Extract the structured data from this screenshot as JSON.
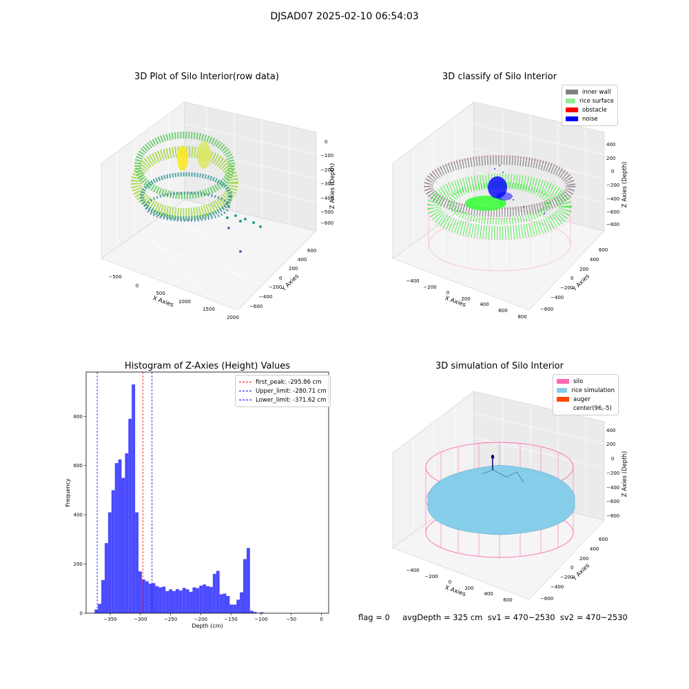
{
  "suptitle": "DJSAD07 2025-02-10 06:54:03",
  "footer": "flag = 0     avgDepth = 325 cm  sv1 = 470~2530  sv2 = 470~2530",
  "colors": {
    "wall": "#808080",
    "rice": "#90ee90",
    "obstacle": "#ff0000",
    "noise": "#0000ff",
    "silo": "#ff69b4",
    "rice_sim": "#87ceeb",
    "auger": "#ff4500",
    "hist_bar": "#4b4bff",
    "peak_line": "#ff0000",
    "limit_line": "#0000ff"
  },
  "plot1": {
    "title": "3D Plot of Silo Interior(row data)",
    "xlabel": "X Axies",
    "ylabel": "Y Axies",
    "zlabel": "Z Axies (Depth)",
    "xticks": [
      "−500",
      "0",
      "500",
      "1000",
      "1500",
      "2000"
    ],
    "yticks": [
      "600",
      "400",
      "200",
      "0",
      "−200",
      "−400",
      "−600"
    ],
    "zticks": [
      "0",
      "−100",
      "−200",
      "−300",
      "−400",
      "−500",
      "−600"
    ]
  },
  "plot2": {
    "title": "3D classify of Silo Interior",
    "xlabel": "X Axies",
    "ylabel": "Y Axies",
    "zlabel": "Z Axies (Depth)",
    "xticks": [
      "−400",
      "−200",
      "0",
      "200",
      "400",
      "600",
      "800"
    ],
    "yticks": [
      "600",
      "400",
      "200",
      "0",
      "−200",
      "−400",
      "−600"
    ],
    "zticks": [
      "400",
      "200",
      "0",
      "−200",
      "−400",
      "−600",
      "−800"
    ],
    "legend": [
      {
        "label": "inner wall",
        "color": "#808080"
      },
      {
        "label": "rice surface",
        "color": "#90ee90"
      },
      {
        "label": "obstacle",
        "color": "#ff0000"
      },
      {
        "label": "noise",
        "color": "#0000ff"
      }
    ]
  },
  "plot4": {
    "title": "3D simulation of Silo Interior",
    "xlabel": "X Axies",
    "ylabel": "Y Axies",
    "zlabel": "Z Axies (Depth)",
    "xticks": [
      "−400",
      "−200",
      "0",
      "200",
      "400",
      "600"
    ],
    "yticks": [
      "600",
      "400",
      "200",
      "0",
      "−200",
      "−400",
      "−600"
    ],
    "zticks": [
      "400",
      "200",
      "0",
      "−200",
      "−400",
      "−600",
      "−800"
    ],
    "legend": [
      {
        "label": "silo",
        "color": "#ff69b4"
      },
      {
        "label": "rice simulation",
        "color": "#87ceeb"
      },
      {
        "label": "auger",
        "color": "#ff4500"
      },
      {
        "label": "center(96,-5)",
        "color": "#ffffff"
      }
    ]
  },
  "chart_data": {
    "type": "bar",
    "title": "Histogram of Z-Axies (Height) Values",
    "xlabel": "Depth (cm)",
    "ylabel": "Frequency",
    "xlim": [
      -390,
      12
    ],
    "ylim": [
      0,
      980
    ],
    "xticks": [
      -350,
      -300,
      -250,
      -200,
      -150,
      -100,
      -50,
      0
    ],
    "yticks": [
      0,
      200,
      400,
      600,
      800
    ],
    "bin_start": -376,
    "bin_width": 5.6,
    "values": [
      15,
      38,
      135,
      285,
      410,
      500,
      610,
      625,
      550,
      650,
      790,
      930,
      410,
      170,
      137,
      130,
      120,
      122,
      110,
      105,
      108,
      90,
      97,
      90,
      98,
      92,
      103,
      97,
      87,
      105,
      102,
      112,
      117,
      110,
      107,
      160,
      172,
      77,
      80,
      70,
      35,
      35,
      55,
      85,
      220,
      265,
      10,
      5,
      0,
      4
    ],
    "vlines": [
      {
        "label": "first_peak: -295.86 cm",
        "x": -295.86,
        "color": "#ff0000"
      },
      {
        "label": "Upper_limit: -280.71 cm",
        "x": -280.71,
        "color": "#0000ff"
      },
      {
        "label": "Lower_limit: -371.62 cm",
        "x": -371.62,
        "color": "#0000ff"
      }
    ],
    "legend_position": "top-right"
  }
}
